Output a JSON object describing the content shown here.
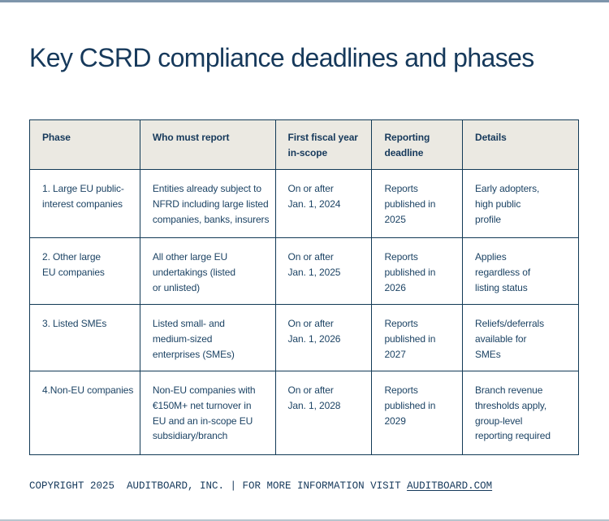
{
  "page": {
    "title": "Key CSRD compliance deadlines and phases"
  },
  "colors": {
    "navy_text": "#16395b",
    "table_border": "#123a56",
    "header_background": "#ebe9e2",
    "top_bar": "#7e95ab",
    "bottom_bar": "#b7c6ce"
  },
  "table": {
    "headers": [
      "Phase",
      "Who must report",
      "First fiscal year\nin-scope",
      "Reporting\ndeadline",
      "Details"
    ],
    "rows": [
      {
        "cells": [
          "1. Large EU public-\ninterest companies",
          "Entities already subject to\nNFRD including large listed\ncompanies, banks, insurers",
          "On or after\nJan. 1, 2024",
          "Reports\npublished in\n2025",
          "Early adopters,\nhigh public\nprofile"
        ]
      },
      {
        "cells": [
          "2. Other large\nEU companies",
          "All other large EU\nundertakings (listed\nor unlisted)",
          "On or after\nJan. 1, 2025",
          "Reports\npublished in\n2026",
          "Applies\nregardless of\nlisting status"
        ]
      },
      {
        "cells": [
          "3. Listed SMEs",
          "Listed small- and\nmedium-sized\nenterprises (SMEs)",
          "On or after\nJan. 1, 2026",
          "Reports\npublished in\n2027",
          "Reliefs/deferrals\navailable for\nSMEs"
        ]
      },
      {
        "cells": [
          "4.Non-EU companies",
          "Non-EU companies with\n€150M+ net turnover in\nEU and an in-scope EU\nsubsidiary/branch",
          "On or after\nJan. 1, 2028",
          "Reports\npublished in\n2029",
          "Branch revenue\nthresholds apply,\ngroup-level\nreporting required"
        ]
      }
    ]
  },
  "footer": {
    "copyright_prefix": "COPYRIGHT 2025  AUDITBOARD, INC. | FOR MORE INFORMATION VISIT ",
    "link_text": "AUDITBOARD.COM"
  }
}
